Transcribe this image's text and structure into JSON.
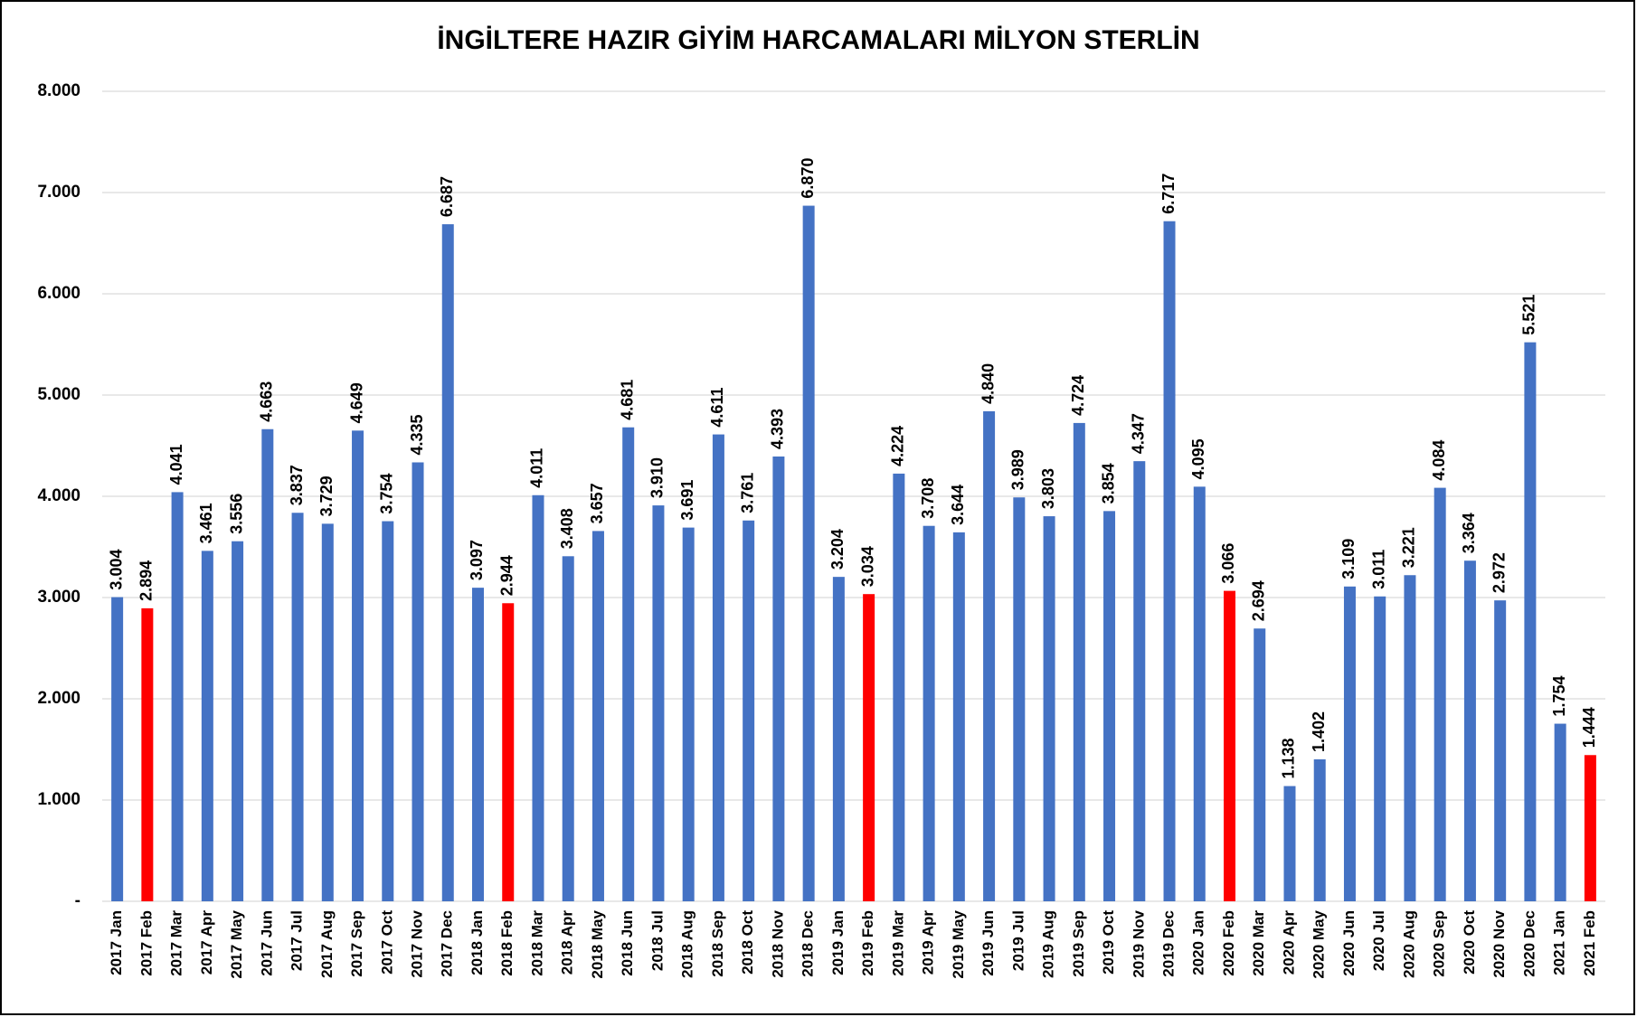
{
  "chart_data": {
    "type": "bar",
    "title": "İNGİLTERE HAZIR GİYİM HARCAMALARI MİLYON STERLİN",
    "categories": [
      "2017 Jan",
      "2017 Feb",
      "2017 Mar",
      "2017 Apr",
      "2017 May",
      "2017 Jun",
      "2017 Jul",
      "2017 Aug",
      "2017 Sep",
      "2017 Oct",
      "2017 Nov",
      "2017 Dec",
      "2018 Jan",
      "2018 Feb",
      "2018 Mar",
      "2018 Apr",
      "2018 May",
      "2018 Jun",
      "2018 Jul",
      "2018 Aug",
      "2018 Sep",
      "2018 Oct",
      "2018 Nov",
      "2018 Dec",
      "2019 Jan",
      "2019 Feb",
      "2019 Mar",
      "2019 Apr",
      "2019 May",
      "2019 Jun",
      "2019 Jul",
      "2019 Aug",
      "2019 Sep",
      "2019 Oct",
      "2019 Nov",
      "2019 Dec",
      "2020 Jan",
      "2020 Feb",
      "2020 Mar",
      "2020 Apr",
      "2020 May",
      "2020 Jun",
      "2020 Jul",
      "2020 Aug",
      "2020 Sep",
      "2020 Oct",
      "2020 Nov",
      "2020 Dec",
      "2021 Jan",
      "2021 Feb"
    ],
    "values": [
      3004,
      2894,
      4041,
      3461,
      3556,
      4663,
      3837,
      3729,
      4649,
      3754,
      4335,
      6687,
      3097,
      2944,
      4011,
      3408,
      3657,
      4681,
      3910,
      3691,
      4611,
      3761,
      4393,
      6870,
      3204,
      3034,
      4224,
      3708,
      3644,
      4840,
      3989,
      3803,
      4724,
      3854,
      4347,
      6717,
      4095,
      3066,
      2694,
      1138,
      1402,
      3109,
      3011,
      3221,
      4084,
      3364,
      2972,
      5521,
      1754,
      1444
    ],
    "value_labels": [
      "3.004",
      "2.894",
      "4.041",
      "3.461",
      "3.556",
      "4.663",
      "3.837",
      "3.729",
      "4.649",
      "3.754",
      "4.335",
      "6.687",
      "3.097",
      "2.944",
      "4.011",
      "3.408",
      "3.657",
      "4.681",
      "3.910",
      "3.691",
      "4.611",
      "3.761",
      "4.393",
      "6.870",
      "3.204",
      "3.034",
      "4.224",
      "3.708",
      "3.644",
      "4.840",
      "3.989",
      "3.803",
      "4.724",
      "3.854",
      "4.347",
      "6.717",
      "4.095",
      "3.066",
      "2.694",
      "1.138",
      "1.402",
      "3.109",
      "3.011",
      "3.221",
      "4.084",
      "3.364",
      "2.972",
      "5.521",
      "1.754",
      "1.444"
    ],
    "colors": [
      "#4472c4",
      "#ff0000",
      "#4472c4",
      "#4472c4",
      "#4472c4",
      "#4472c4",
      "#4472c4",
      "#4472c4",
      "#4472c4",
      "#4472c4",
      "#4472c4",
      "#4472c4",
      "#4472c4",
      "#ff0000",
      "#4472c4",
      "#4472c4",
      "#4472c4",
      "#4472c4",
      "#4472c4",
      "#4472c4",
      "#4472c4",
      "#4472c4",
      "#4472c4",
      "#4472c4",
      "#4472c4",
      "#ff0000",
      "#4472c4",
      "#4472c4",
      "#4472c4",
      "#4472c4",
      "#4472c4",
      "#4472c4",
      "#4472c4",
      "#4472c4",
      "#4472c4",
      "#4472c4",
      "#4472c4",
      "#ff0000",
      "#4472c4",
      "#4472c4",
      "#4472c4",
      "#4472c4",
      "#4472c4",
      "#4472c4",
      "#4472c4",
      "#4472c4",
      "#4472c4",
      "#4472c4",
      "#4472c4",
      "#ff0000"
    ],
    "ylim": [
      0,
      8000
    ],
    "yticks": [
      {
        "value": 0,
        "label": "-"
      },
      {
        "value": 1000,
        "label": "1.000"
      },
      {
        "value": 2000,
        "label": "2.000"
      },
      {
        "value": 3000,
        "label": "3.000"
      },
      {
        "value": 4000,
        "label": "4.000"
      },
      {
        "value": 5000,
        "label": "5.000"
      },
      {
        "value": 6000,
        "label": "6.000"
      },
      {
        "value": 7000,
        "label": "7.000"
      },
      {
        "value": 8000,
        "label": "8.000"
      }
    ],
    "grid": true
  }
}
